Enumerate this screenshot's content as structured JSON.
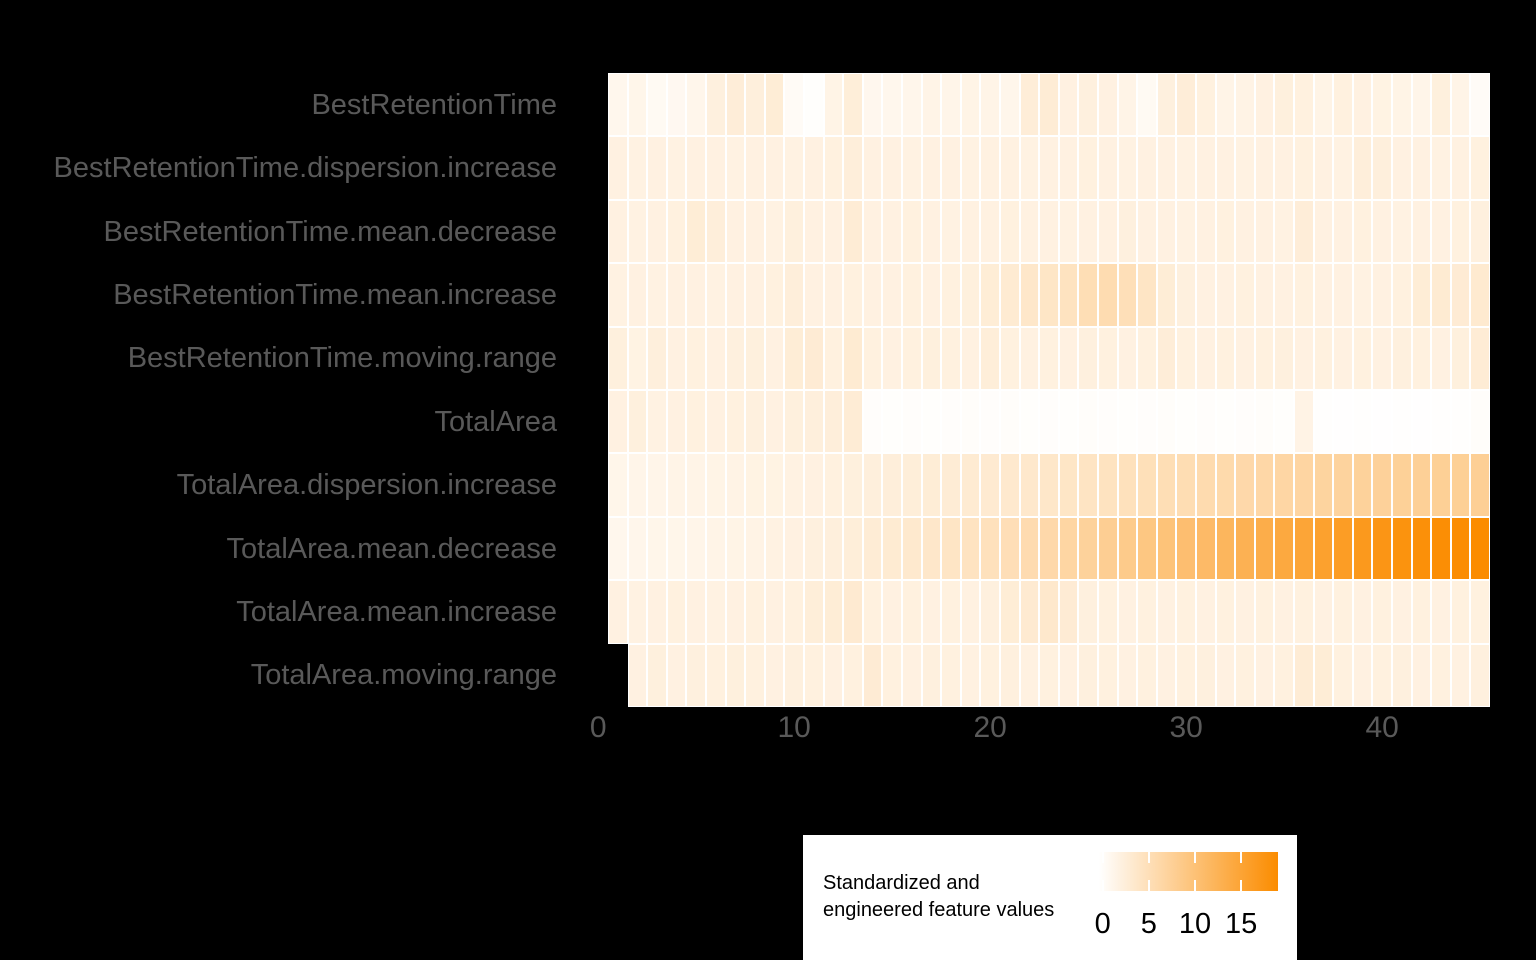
{
  "colors": {
    "page_background": "#000000",
    "tile_border": "#ffffff",
    "axis_label_gray": "#595959",
    "scale_low": "#ffffff",
    "scale_high": "#fb8c00",
    "legend_background": "#ffffff",
    "legend_text": "#000000"
  },
  "chart_data": {
    "type": "heatmap",
    "title": "",
    "xlabel": "",
    "ylabel": "",
    "x_ticks": [
      0,
      10,
      20,
      30,
      40
    ],
    "x_range": [
      0.5,
      45.5
    ],
    "grid": false,
    "legend_position": "bottom-right",
    "categories_note": "columns are observation index 1..45; bottom row is missing column 1",
    "rows": [
      "BestRetentionTime",
      "BestRetentionTime.dispersion.increase",
      "BestRetentionTime.mean.decrease",
      "BestRetentionTime.mean.increase",
      "BestRetentionTime.moving.range",
      "TotalArea",
      "TotalArea.dispersion.increase",
      "TotalArea.mean.decrease",
      "TotalArea.mean.increase",
      "TotalArea.moving.range"
    ],
    "series": [
      {
        "name": "BestRetentionTime",
        "values": [
          1.0,
          1.2,
          0.5,
          0.7,
          1.1,
          2.1,
          2.6,
          2.3,
          2.7,
          0.3,
          -0.2,
          1.5,
          2.5,
          0.9,
          1.0,
          1.1,
          1.4,
          1.3,
          1.5,
          1.4,
          1.1,
          2.6,
          2.8,
          1.9,
          2.1,
          1.9,
          1.4,
          0.5,
          2.1,
          2.6,
          2.0,
          1.4,
          1.6,
          1.9,
          2.2,
          2.0,
          1.5,
          2.0,
          1.9,
          1.7,
          1.5,
          1.3,
          2.2,
          1.4,
          0.2
        ]
      },
      {
        "name": "BestRetentionTime.dispersion.increase",
        "values": [
          1.9,
          1.8,
          1.9,
          1.8,
          1.9,
          1.9,
          1.8,
          1.9,
          1.9,
          1.8,
          1.9,
          2.0,
          2.4,
          1.9,
          1.9,
          1.8,
          1.9,
          1.9,
          1.8,
          1.9,
          1.9,
          1.8,
          1.9,
          1.9,
          2.0,
          1.9,
          1.8,
          1.9,
          1.9,
          1.8,
          1.9,
          1.9,
          1.8,
          1.9,
          1.9,
          2.0,
          1.9,
          1.8,
          2.4,
          2.3,
          1.9,
          1.9,
          1.8,
          1.9,
          2.0
        ]
      },
      {
        "name": "BestRetentionTime.mean.decrease",
        "values": [
          1.9,
          1.8,
          1.9,
          2.0,
          2.7,
          2.4,
          1.9,
          1.9,
          1.8,
          2.2,
          1.9,
          1.9,
          2.8,
          1.9,
          1.9,
          2.0,
          1.9,
          1.8,
          1.9,
          1.9,
          2.0,
          1.9,
          1.9,
          1.8,
          1.9,
          1.9,
          2.1,
          1.9,
          1.9,
          1.8,
          1.9,
          2.0,
          1.9,
          1.9,
          1.8,
          2.6,
          1.9,
          1.9,
          2.0,
          1.9,
          1.8,
          1.9,
          1.9,
          2.0,
          2.1
        ]
      },
      {
        "name": "BestRetentionTime.mean.increase",
        "values": [
          1.8,
          1.9,
          1.8,
          1.9,
          1.9,
          1.8,
          1.9,
          1.9,
          2.0,
          2.4,
          1.9,
          1.9,
          2.0,
          1.9,
          1.9,
          2.0,
          1.9,
          2.0,
          2.2,
          2.7,
          3.0,
          3.6,
          3.9,
          4.4,
          5.2,
          5.5,
          5.0,
          4.0,
          2.7,
          2.1,
          1.9,
          1.9,
          2.0,
          1.9,
          1.9,
          2.0,
          1.9,
          1.9,
          1.8,
          1.9,
          2.0,
          2.7,
          3.0,
          2.9,
          3.2
        ]
      },
      {
        "name": "BestRetentionTime.moving.range",
        "values": [
          2.2,
          1.7,
          2.3,
          1.9,
          2.0,
          1.9,
          2.1,
          2.2,
          1.9,
          2.7,
          2.9,
          2.0,
          3.0,
          2.0,
          1.9,
          2.0,
          2.2,
          2.0,
          1.9,
          2.5,
          2.0,
          1.9,
          2.0,
          1.9,
          2.1,
          2.0,
          1.9,
          2.0,
          2.6,
          2.0,
          1.9,
          2.0,
          1.9,
          2.0,
          2.1,
          1.9,
          2.0,
          1.9,
          2.0,
          1.9,
          2.1,
          2.0,
          1.9,
          2.2,
          2.8
        ]
      },
      {
        "name": "TotalArea",
        "values": [
          1.9,
          2.2,
          1.8,
          1.9,
          2.0,
          1.9,
          2.0,
          2.1,
          1.9,
          2.2,
          2.3,
          2.4,
          2.8,
          -0.1,
          -0.15,
          -0.1,
          -0.15,
          -0.1,
          -0.05,
          -0.1,
          0.0,
          -0.15,
          -0.1,
          -0.15,
          -0.05,
          -0.1,
          -0.15,
          -0.1,
          -0.05,
          -0.15,
          -0.1,
          -0.15,
          -0.1,
          -0.05,
          -0.15,
          1.6,
          -0.25,
          -0.3,
          -0.25,
          -0.3,
          -0.25,
          -0.3,
          -0.25,
          -0.25,
          -0.05
        ]
      },
      {
        "name": "TotalArea.dispersion.increase",
        "values": [
          1.2,
          1.3,
          1.3,
          1.4,
          1.4,
          1.5,
          1.6,
          1.7,
          1.7,
          1.8,
          1.9,
          2.0,
          2.2,
          2.3,
          2.4,
          2.5,
          2.7,
          2.8,
          3.0,
          3.1,
          3.3,
          3.5,
          3.7,
          3.9,
          4.2,
          4.4,
          4.7,
          4.9,
          5.2,
          5.4,
          5.7,
          5.9,
          6.1,
          6.3,
          6.5,
          6.7,
          6.9,
          7.0,
          7.2,
          7.3,
          7.4,
          7.5,
          7.6,
          7.6,
          7.7
        ]
      },
      {
        "name": "TotalArea.mean.decrease",
        "values": [
          1.0,
          1.1,
          1.2,
          1.2,
          1.3,
          1.4,
          1.5,
          1.6,
          1.8,
          1.9,
          2.1,
          2.3,
          2.5,
          2.8,
          3.0,
          3.3,
          3.6,
          4.0,
          4.3,
          4.7,
          5.1,
          5.6,
          6.1,
          6.6,
          7.2,
          7.8,
          8.4,
          9.1,
          9.8,
          10.5,
          11.2,
          11.9,
          12.7,
          13.4,
          14.1,
          14.8,
          15.5,
          16.2,
          16.8,
          17.4,
          17.9,
          18.3,
          18.6,
          18.8,
          19.0
        ]
      },
      {
        "name": "TotalArea.mean.increase",
        "values": [
          1.9,
          1.8,
          1.9,
          2.0,
          1.9,
          1.8,
          1.9,
          2.0,
          1.9,
          2.0,
          2.5,
          2.7,
          3.1,
          2.0,
          1.9,
          2.0,
          1.9,
          2.0,
          1.9,
          2.1,
          2.7,
          3.1,
          3.5,
          2.9,
          2.1,
          2.0,
          1.9,
          2.0,
          1.9,
          2.0,
          1.9,
          2.0,
          1.9,
          2.0,
          1.9,
          2.0,
          1.9,
          2.0,
          1.9,
          2.0,
          1.9,
          2.0,
          1.9,
          2.0,
          2.0
        ]
      },
      {
        "name": "TotalArea.moving.range",
        "values": [
          null,
          1.9,
          2.2,
          1.9,
          2.1,
          2.0,
          2.2,
          2.0,
          1.9,
          2.1,
          2.0,
          1.9,
          2.0,
          2.9,
          2.0,
          1.9,
          2.1,
          2.0,
          1.9,
          2.0,
          2.1,
          1.9,
          2.0,
          1.9,
          2.1,
          2.0,
          1.9,
          2.0,
          1.9,
          2.0,
          2.1,
          1.9,
          2.0,
          1.9,
          2.0,
          2.8,
          2.7,
          2.0,
          1.9,
          2.0,
          2.1,
          1.9,
          2.0,
          1.9,
          2.1
        ]
      }
    ],
    "colorbar": {
      "title_lines": [
        "Standardized and",
        "engineered feature values"
      ],
      "ticks": [
        0,
        5,
        10,
        15
      ],
      "tick_labels": [
        "0",
        "5",
        "10",
        "15"
      ],
      "domain": [
        -0.4,
        19.0
      ]
    }
  }
}
